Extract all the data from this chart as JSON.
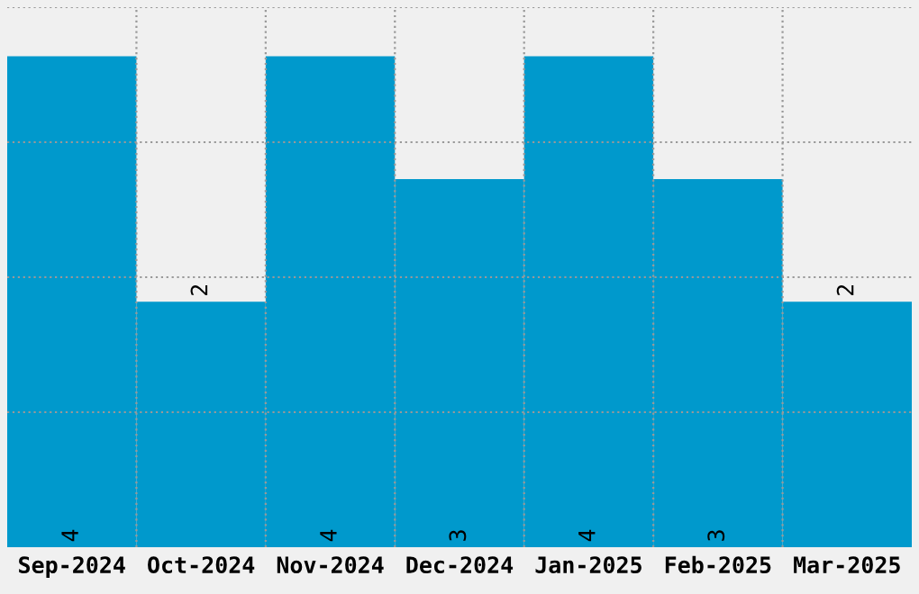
{
  "chart_data": {
    "type": "bar",
    "categories": [
      "Sep-2024",
      "Oct-2024",
      "Nov-2024",
      "Dec-2024",
      "Jan-2025",
      "Feb-2025",
      "Mar-2025"
    ],
    "values": [
      4,
      2,
      4,
      3,
      4,
      3,
      2
    ],
    "color": "#0099cc",
    "data_labels": true,
    "grid": true,
    "tick_labels": "x",
    "ylim": [
      0,
      4.4
    ],
    "yticks": [
      {
        "value": 1.1,
        "label": null
      },
      {
        "value": 2.2,
        "label": null
      },
      {
        "value": 3.3,
        "label": null
      },
      {
        "value": 4.4,
        "label": null
      }
    ]
  }
}
